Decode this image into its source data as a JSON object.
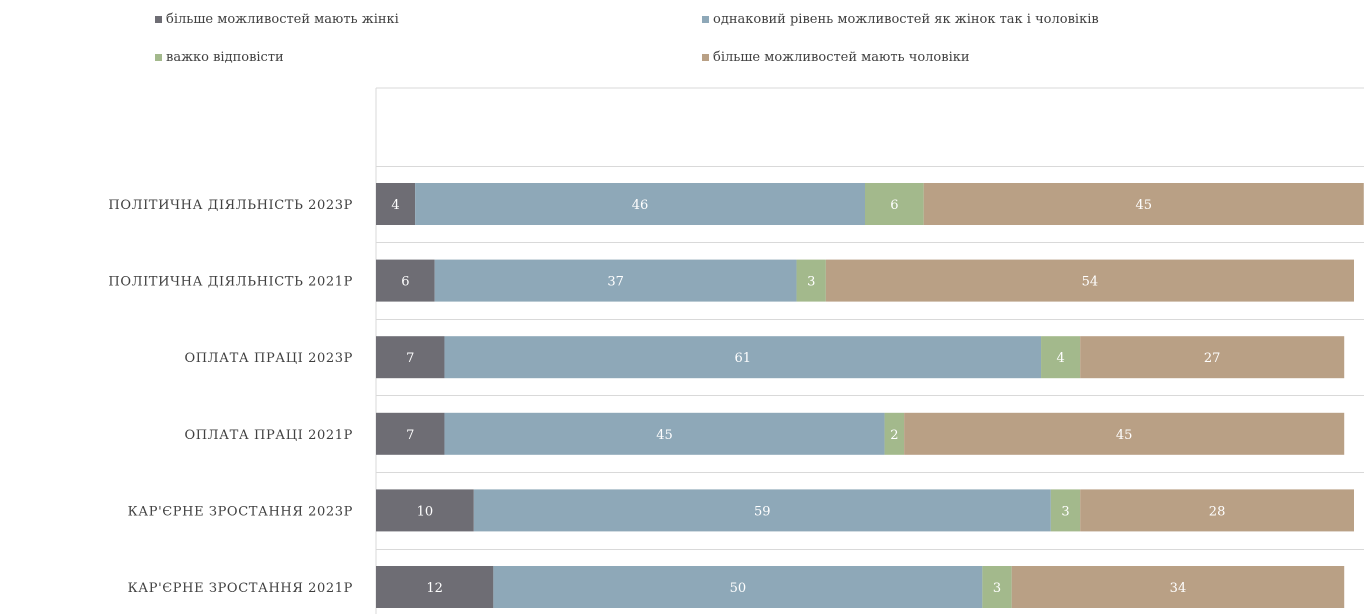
{
  "chart_data": {
    "type": "bar",
    "orientation": "horizontal",
    "stacked": true,
    "title": "",
    "xlabel": "",
    "ylabel": "",
    "xlim": [
      0,
      100
    ],
    "legend_position": "top",
    "grid": true,
    "categories": [
      "ПОЛІТИЧНА ДІЯЛЬНІСТЬ 2023Р",
      "ПОЛІТИЧНА ДІЯЛЬНІСТЬ 2021Р",
      "ОПЛАТА ПРАЦІ 2023Р",
      "ОПЛАТА ПРАЦІ 2021Р",
      "КАР'ЄРНЕ ЗРОСТАННЯ 2023Р",
      "КАР'ЄРНЕ ЗРОСТАННЯ 2021Р"
    ],
    "series": [
      {
        "name": "більше можливостей мають жінкі",
        "color": "#6e6d74",
        "values": [
          4,
          6,
          7,
          7,
          10,
          12
        ]
      },
      {
        "name": "однаковий рівень можливостей як жінок так і чоловіків",
        "color": "#8ea8b8",
        "values": [
          46,
          37,
          61,
          45,
          59,
          50
        ]
      },
      {
        "name": "важко відповісти",
        "color": "#a3b98c",
        "values": [
          6,
          3,
          4,
          2,
          3,
          3
        ]
      },
      {
        "name": "більше можливостей мають чоловіки",
        "color": "#b9a085",
        "values": [
          45,
          54,
          27,
          45,
          28,
          34
        ]
      }
    ]
  }
}
